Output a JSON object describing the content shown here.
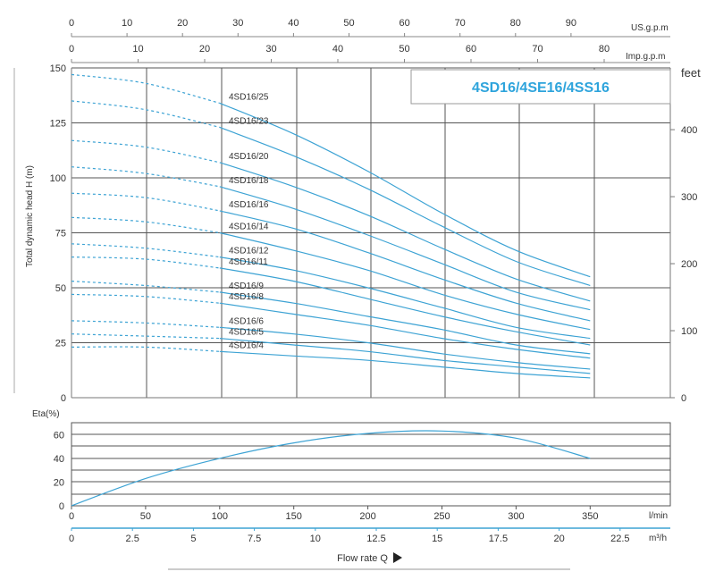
{
  "chart_data": [
    {
      "type": "line",
      "title": "4SD16/4SE16/4SS16",
      "ylabel": "Total dynamic head H (m)",
      "ylabel_right": "feet",
      "ylim": [
        0,
        150
      ],
      "yticks": [
        0,
        25,
        50,
        75,
        100,
        125,
        150
      ],
      "feet_ticks": [
        0,
        100,
        200,
        300,
        400
      ],
      "xlim_lmin": [
        0,
        365
      ],
      "top_axes": [
        {
          "name": "US.g.p.m",
          "ticks": [
            0,
            10,
            20,
            30,
            40,
            50,
            60,
            70,
            80,
            90
          ]
        },
        {
          "name": "Imp.g.p.m",
          "ticks": [
            0,
            10,
            20,
            30,
            40,
            50,
            60,
            70,
            80
          ]
        }
      ],
      "curve_x": [
        0,
        50,
        100,
        150,
        200,
        250,
        300,
        350
      ],
      "series": [
        {
          "name": "4SD16/25",
          "values": [
            147,
            143,
            134,
            120,
            103,
            84,
            67,
            55
          ]
        },
        {
          "name": "4SD16/23",
          "values": [
            135,
            131,
            123,
            110,
            95,
            78,
            62,
            51
          ]
        },
        {
          "name": "4SD16/20",
          "values": [
            117,
            114,
            107,
            96,
            83,
            68,
            54,
            44
          ]
        },
        {
          "name": "4SD16/18",
          "values": [
            105,
            102,
            96,
            86,
            74,
            61,
            48,
            40
          ]
        },
        {
          "name": "4SD16/16",
          "values": [
            93,
            91,
            85,
            77,
            66,
            54,
            43,
            35
          ]
        },
        {
          "name": "4SD16/14",
          "values": [
            82,
            80,
            75,
            67,
            58,
            47,
            38,
            31
          ]
        },
        {
          "name": "4SD16/12",
          "values": [
            70,
            68,
            64,
            58,
            50,
            41,
            32,
            27
          ]
        },
        {
          "name": "4SD16/11",
          "values": [
            64,
            63,
            59,
            53,
            45,
            37,
            30,
            24
          ]
        },
        {
          "name": "4SD16/9",
          "values": [
            53,
            51,
            48,
            43,
            37,
            31,
            24,
            20
          ]
        },
        {
          "name": "4SD16/8",
          "values": [
            47,
            46,
            43,
            38,
            33,
            27,
            22,
            18
          ]
        },
        {
          "name": "4SD16/6",
          "values": [
            35,
            34,
            32,
            29,
            25,
            20,
            16,
            13
          ]
        },
        {
          "name": "4SD16/5",
          "values": [
            29,
            28,
            27,
            24,
            21,
            17,
            14,
            11
          ]
        },
        {
          "name": "4SD16/4",
          "values": [
            23,
            23,
            21,
            19,
            17,
            14,
            11,
            9
          ]
        }
      ],
      "dashed_until_x": 100
    },
    {
      "type": "line",
      "ylabel": "Eta(%)",
      "ylim": [
        0,
        70
      ],
      "yticks": [
        0,
        20,
        40,
        60
      ],
      "xlabel": "Flow rate Q",
      "x_units": "l/min",
      "x_ticks": [
        0,
        50,
        100,
        150,
        200,
        250,
        300,
        350
      ],
      "m3h_units": "m³/h",
      "m3h_ticks": [
        "0",
        "2.5",
        "5",
        "7.5",
        "10",
        "12.5",
        "15",
        "17.5",
        "20",
        "22.5"
      ],
      "series": [
        {
          "x": [
            0,
            50,
            100,
            150,
            200,
            250,
            300,
            350
          ],
          "values": [
            0,
            23,
            40,
            53,
            61,
            63,
            57,
            40
          ]
        }
      ]
    }
  ],
  "colors": {
    "curve": "#3da3d4",
    "title": "#2ea4dc",
    "grid": "#555555",
    "axis": "#888888",
    "text": "#333333"
  }
}
